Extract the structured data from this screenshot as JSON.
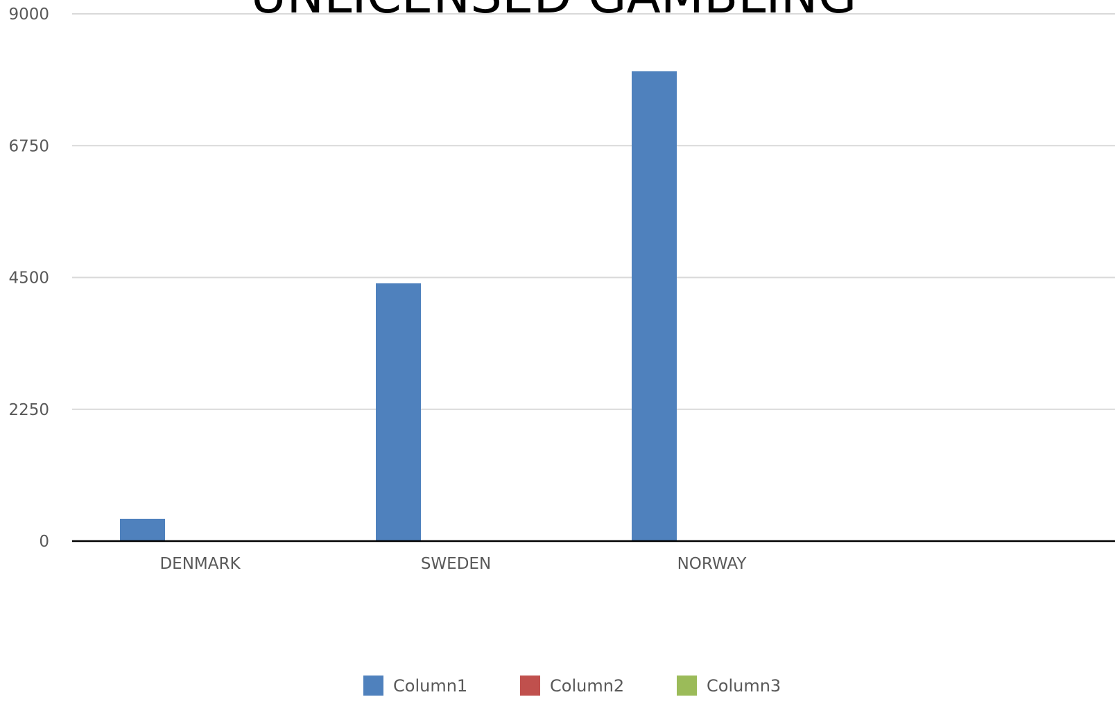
{
  "chart_data": {
    "type": "bar",
    "title": "UNLICENSED GAMBLING",
    "categories": [
      "DENMARK",
      "SWEDEN",
      "NORWAY",
      ""
    ],
    "series": [
      {
        "name": "Column1",
        "values": [
          380,
          4400,
          8020,
          null
        ],
        "color": "#4f81bd"
      },
      {
        "name": "Column2",
        "values": [
          null,
          null,
          null,
          null
        ],
        "color": "#c0504d"
      },
      {
        "name": "Column3",
        "values": [
          null,
          null,
          null,
          null
        ],
        "color": "#9bbb59"
      }
    ],
    "yticks": [
      "0",
      "2250",
      "4500",
      "6750",
      "9000"
    ],
    "ylim": [
      0,
      9000
    ],
    "grid": true,
    "legend_position": "bottom",
    "xlabel": "",
    "ylabel": ""
  }
}
